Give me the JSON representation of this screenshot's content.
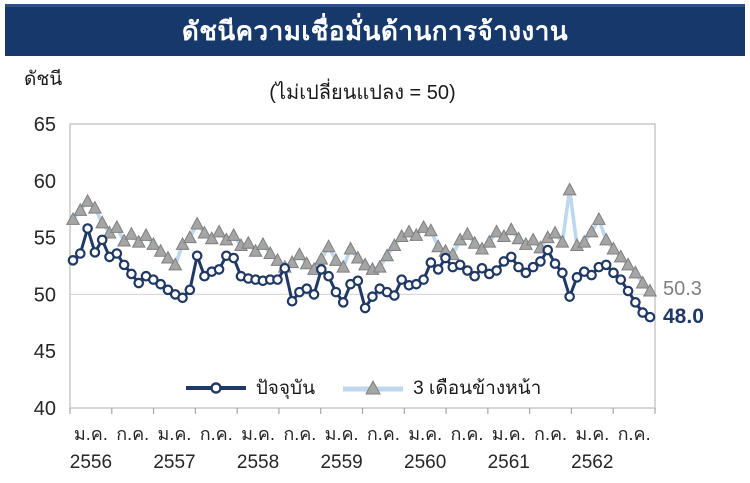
{
  "title": "ดัชนีความเชื่อมั่นด้านการจ้างงาน",
  "unit_label": "ดัชนี",
  "subtitle": "(ไม่เปลี่ยนแปลง = 50)",
  "legend": {
    "current_label": "ปัจจุบัน",
    "ahead_label": "3 เดือนข้างหน้า"
  },
  "end_labels": {
    "ahead": "50.3",
    "current": "48.0"
  },
  "colors": {
    "titlebar_bg": "#17386B",
    "current_line": "#1F3864",
    "ahead_line": "#BDD7EE",
    "triangle_fill": "#A5A5A5",
    "triangle_stroke": "#7F7F7F",
    "grid": "#D9D9D9",
    "plot_border": "#BFBFBF",
    "tick": "#A6A6A6",
    "axis_text": "#262626",
    "end_label_ahead": "#7F7F7F",
    "end_label_current": "#1F3864"
  },
  "chart_data": {
    "type": "line",
    "title": "ดัชนีความเชื่อมั่นด้านการจ้างงาน",
    "subtitle": "(ไม่เปลี่ยนแปลง = 50)",
    "ylabel": "ดัชนี",
    "ylim": [
      40,
      65
    ],
    "yticks": [
      65,
      60,
      55,
      50,
      45,
      40
    ],
    "reference_line": 50,
    "grid": "horizontal-at-50-only",
    "legend_position": "bottom-inside",
    "x_axis": {
      "months_span": 84,
      "tick_step_months": 6,
      "tick_labels": [
        "ม.ค.",
        "ก.ค.",
        "ม.ค.",
        "ก.ค.",
        "ม.ค.",
        "ก.ค.",
        "ม.ค.",
        "ก.ค.",
        "ม.ค.",
        "ก.ค.",
        "ม.ค.",
        "ก.ค.",
        "ม.ค.",
        "ก.ค."
      ],
      "years": [
        "2556",
        "2557",
        "2558",
        "2559",
        "2560",
        "2561",
        "2562"
      ]
    },
    "series": [
      {
        "name": "3 เดือนข้างหน้า",
        "marker": "triangle",
        "line_color": "#BDD7EE",
        "marker_color": "#A5A5A5",
        "last_value_label": "50.3",
        "values": [
          56.6,
          57.4,
          58.2,
          57.6,
          56.3,
          55.4,
          55.9,
          54.7,
          55.3,
          54.6,
          55.2,
          54.4,
          53.8,
          53.2,
          52.6,
          54.4,
          55.0,
          56.2,
          55.4,
          54.9,
          55.5,
          54.8,
          55.2,
          54.3,
          54.5,
          53.8,
          54.4,
          53.6,
          53.0,
          52.4,
          52.8,
          53.5,
          52.7,
          52.2,
          53.1,
          54.2,
          53.0,
          52.4,
          54.0,
          53.2,
          52.6,
          52.2,
          52.4,
          53.4,
          54.3,
          55.1,
          55.5,
          55.2,
          55.9,
          55.6,
          54.2,
          53.8,
          53.5,
          54.8,
          55.3,
          54.5,
          54.0,
          54.6,
          55.5,
          55.1,
          55.7,
          54.9,
          54.4,
          54.8,
          54.1,
          55.0,
          55.4,
          54.6,
          59.2,
          54.3,
          54.6,
          55.5,
          56.6,
          54.8,
          54.0,
          53.3,
          52.6,
          51.9,
          51.0,
          50.3
        ]
      },
      {
        "name": "ปัจจุบัน",
        "marker": "circle",
        "line_color": "#1F3864",
        "marker_color": "#FFFFFF",
        "last_value_label": "48.0",
        "values": [
          53.0,
          53.6,
          55.8,
          53.7,
          54.8,
          53.3,
          53.6,
          52.6,
          51.8,
          51.0,
          51.6,
          51.3,
          50.9,
          50.4,
          50.0,
          49.7,
          50.4,
          53.4,
          51.6,
          52.0,
          52.2,
          53.4,
          53.2,
          51.6,
          51.4,
          51.3,
          51.2,
          51.3,
          51.3,
          52.3,
          49.4,
          50.2,
          50.5,
          50.0,
          52.2,
          51.6,
          50.2,
          49.3,
          50.9,
          51.2,
          48.8,
          49.8,
          50.5,
          50.2,
          49.9,
          51.3,
          50.8,
          50.9,
          51.3,
          52.8,
          52.2,
          53.2,
          52.4,
          52.6,
          52.1,
          51.6,
          52.3,
          51.8,
          52.1,
          52.9,
          53.3,
          52.4,
          51.9,
          52.4,
          52.9,
          53.9,
          52.7,
          51.9,
          49.8,
          51.5,
          52.0,
          51.7,
          52.4,
          52.6,
          51.9,
          51.3,
          50.3,
          49.3,
          48.4,
          48.0
        ]
      }
    ]
  }
}
